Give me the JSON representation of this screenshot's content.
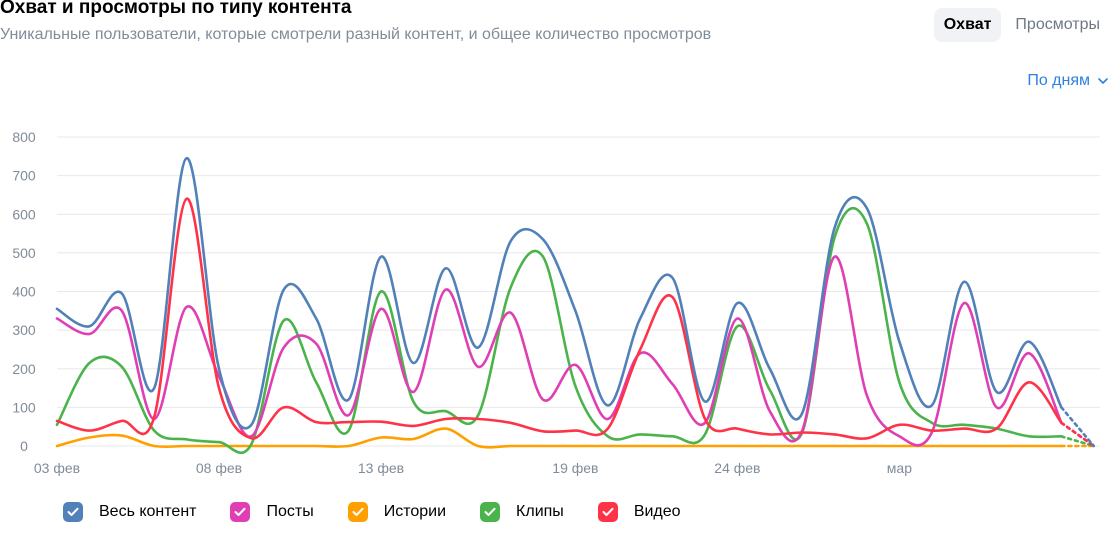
{
  "header": {
    "title": "Охват и просмотры по типу контента",
    "subtitle": "Уникальные пользователи, которые смотрели разный контент, и общее количество просмотров"
  },
  "tabs": [
    {
      "label": "Охват",
      "active": true
    },
    {
      "label": "Просмотры",
      "active": false
    }
  ],
  "period_selector": {
    "label": "По дням"
  },
  "colors": {
    "all": "#5181b8",
    "posts": "#e03fb3",
    "stories": "#ffa000",
    "clips": "#4bb34b",
    "video": "#ff3347",
    "grid": "#e7e8ec",
    "axis_text": "#818c99"
  },
  "chart_data": {
    "type": "line",
    "x_ticks": [
      {
        "day": 0,
        "label": "03 фев"
      },
      {
        "day": 5,
        "label": "08 фев"
      },
      {
        "day": 10,
        "label": "13 фев"
      },
      {
        "day": 16,
        "label": "19 фев"
      },
      {
        "day": 21,
        "label": "24 фев"
      },
      {
        "day": 26,
        "label": "мар"
      }
    ],
    "ylim": [
      0,
      800
    ],
    "y_ticks": [
      0,
      100,
      200,
      300,
      400,
      500,
      600,
      700,
      800
    ],
    "grid": "horizontal",
    "legend_position": "bottom-left",
    "series": [
      {
        "key": "all",
        "name": "Весь контент",
        "values": [
          355,
          310,
          395,
          150,
          745,
          200,
          55,
          405,
          330,
          120,
          490,
          215,
          460,
          255,
          530,
          535,
          350,
          105,
          330,
          435,
          115,
          370,
          200,
          85,
          565,
          615,
          270,
          105,
          425,
          140,
          270,
          100
        ]
      },
      {
        "key": "posts",
        "name": "Посты",
        "values": [
          330,
          290,
          350,
          70,
          360,
          180,
          25,
          255,
          265,
          80,
          355,
          140,
          405,
          205,
          345,
          120,
          210,
          70,
          240,
          160,
          60,
          330,
          90,
          40,
          490,
          130,
          25,
          35,
          370,
          100,
          240,
          60
        ]
      },
      {
        "key": "stories",
        "name": "Истории",
        "values": [
          0,
          22,
          27,
          0,
          0,
          0,
          0,
          0,
          0,
          0,
          22,
          18,
          45,
          0,
          0,
          0,
          0,
          0,
          0,
          0,
          0,
          0,
          0,
          0,
          0,
          0,
          0,
          0,
          0,
          0,
          0,
          0
        ]
      },
      {
        "key": "clips",
        "name": "Клипы",
        "values": [
          55,
          215,
          205,
          40,
          17,
          10,
          5,
          325,
          165,
          40,
          400,
          115,
          90,
          80,
          410,
          490,
          155,
          25,
          30,
          25,
          30,
          310,
          145,
          35,
          540,
          575,
          165,
          60,
          55,
          45,
          25,
          25
        ]
      },
      {
        "key": "video",
        "name": "Видео",
        "values": [
          65,
          40,
          65,
          75,
          640,
          150,
          20,
          100,
          62,
          62,
          63,
          52,
          70,
          70,
          60,
          38,
          40,
          45,
          250,
          385,
          70,
          45,
          30,
          35,
          30,
          20,
          55,
          40,
          45,
          45,
          165,
          60
        ]
      }
    ],
    "projected_end": {
      "day": 32,
      "value": 0
    }
  }
}
